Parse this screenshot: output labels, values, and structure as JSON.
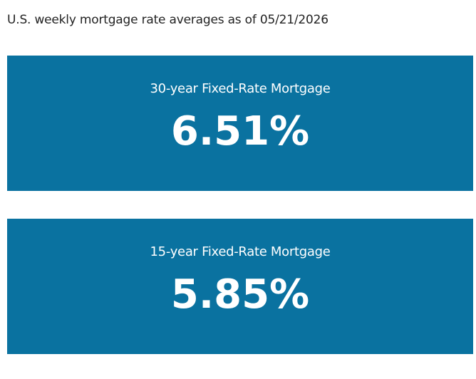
{
  "header": {
    "title": "U.S. weekly mortgage rate averages as of 05/21/2026"
  },
  "cards": [
    {
      "label": "30-year Fixed-Rate Mortgage",
      "value": "6.51%"
    },
    {
      "label": "15-year Fixed-Rate Mortgage",
      "value": "5.85%"
    }
  ]
}
